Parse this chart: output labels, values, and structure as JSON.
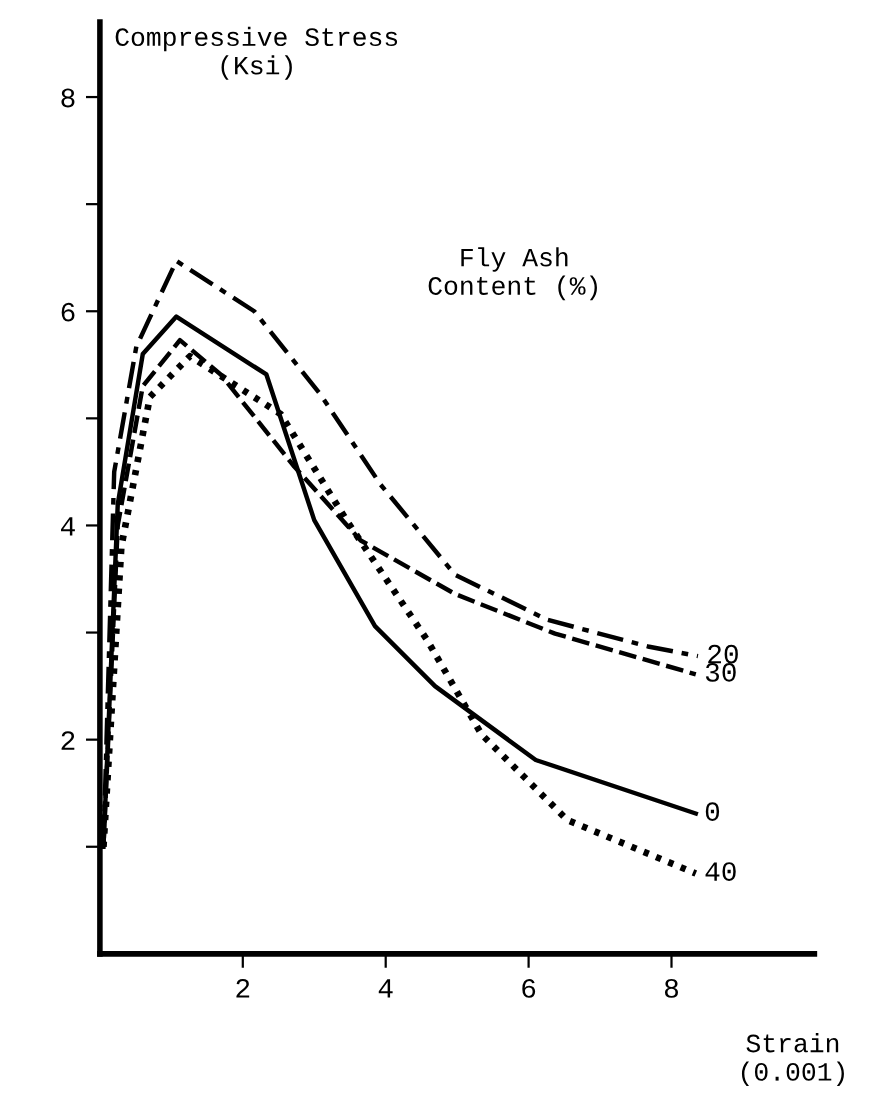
{
  "chart_data": {
    "type": "line",
    "ylabel": "Compressive Stress\n(Ksi)",
    "xlabel": "Strain\n(0.001)",
    "legend_title": "Fly Ash\nContent (%)",
    "xlim": [
      0,
      10
    ],
    "ylim": [
      0,
      8.7
    ],
    "xticks": [
      2,
      4,
      6,
      8
    ],
    "yticks": [
      {
        "value": 1,
        "label": null
      },
      2,
      {
        "value": 3,
        "label": null
      },
      4,
      {
        "value": 5,
        "label": null
      },
      6,
      {
        "value": 7,
        "label": null
      },
      8
    ],
    "grid": false,
    "legend": false,
    "marker": "none",
    "series": [
      {
        "name": "20",
        "color": "#000000",
        "line_style": "dashdot",
        "x": [
          0.05,
          0.2,
          0.51,
          1.07,
          2.16,
          3.09,
          3.93,
          4.97,
          6.26,
          7.67,
          8.37
        ],
        "values": [
          1.0,
          4.5,
          5.67,
          6.47,
          6.0,
          5.22,
          4.38,
          3.54,
          3.12,
          2.87,
          2.78
        ]
      },
      {
        "name": "30",
        "color": "#000000",
        "line_style": "dashed",
        "x": [
          0.05,
          0.25,
          0.6,
          1.12,
          1.69,
          2.72,
          3.65,
          4.97,
          6.37,
          8.34
        ],
        "values": [
          1.0,
          4.0,
          5.3,
          5.73,
          5.41,
          4.55,
          3.86,
          3.36,
          2.99,
          2.61
        ]
      },
      {
        "name": "0",
        "color": "#000000",
        "line_style": "solid",
        "x": [
          0.05,
          0.25,
          0.6,
          1.07,
          2.33,
          3.0,
          3.85,
          4.69,
          6.1,
          8.34
        ],
        "values": [
          1.0,
          4.2,
          5.6,
          5.95,
          5.41,
          4.05,
          3.06,
          2.5,
          1.81,
          1.31
        ]
      },
      {
        "name": "40",
        "color": "#000000",
        "line_style": "dotted",
        "x": [
          0.05,
          0.3,
          0.7,
          1.26,
          2.53,
          3.45,
          4.58,
          5.34,
          6.54,
          8.34
        ],
        "values": [
          1.0,
          3.8,
          5.2,
          5.58,
          5.04,
          4.05,
          2.93,
          2.05,
          1.25,
          0.75
        ]
      }
    ]
  }
}
